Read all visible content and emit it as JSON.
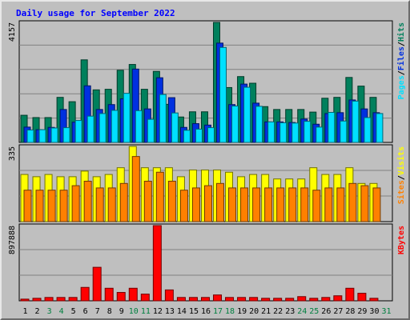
{
  "chart_data": {
    "type": "bar",
    "title": "Daily usage for September 2022",
    "categories": [
      "1",
      "2",
      "3",
      "4",
      "5",
      "6",
      "7",
      "8",
      "9",
      "10",
      "11",
      "12",
      "13",
      "14",
      "15",
      "16",
      "17",
      "18",
      "19",
      "20",
      "21",
      "22",
      "23",
      "24",
      "25",
      "26",
      "27",
      "28",
      "29",
      "30",
      "31"
    ],
    "weekend_days": [
      "3",
      "4",
      "10",
      "11",
      "17",
      "18",
      "24",
      "25",
      "31"
    ],
    "panels": [
      {
        "max_label": "4157",
        "ymax": 4157,
        "legend": [
          "Pages",
          "Files",
          "Hits"
        ],
        "series": [
          {
            "name": "Hits",
            "color": "#00805c",
            "values": [
              940,
              860,
              860,
              1560,
              1410,
              2860,
              1820,
              1840,
              2500,
              2700,
              1840,
              2460,
              1320,
              880,
              1060,
              1060,
              4157,
              1900,
              2280,
              2050,
              1240,
              1140,
              1140,
              1140,
              1050,
              1530,
              1560,
              2250,
              1950,
              1560,
              0
            ]
          },
          {
            "name": "Files",
            "color": "#0030e0",
            "values": [
              530,
              440,
              520,
              1140,
              700,
              1960,
              1140,
              1310,
              1510,
              2540,
              1160,
              2240,
              1550,
              520,
              650,
              600,
              3440,
              1310,
              2020,
              1360,
              710,
              710,
              690,
              810,
              630,
              1000,
              1030,
              1470,
              1160,
              1030,
              0
            ]
          },
          {
            "name": "Pages",
            "color": "#00e0ff",
            "values": [
              430,
              440,
              500,
              510,
              760,
              910,
              1000,
              1110,
              1700,
              1100,
              800,
              1660,
              1020,
              420,
              460,
              510,
              3290,
              1260,
              1910,
              1250,
              710,
              680,
              670,
              730,
              530,
              1040,
              740,
              1430,
              860,
              1000,
              0
            ]
          }
        ]
      },
      {
        "max_label": "335",
        "ymax": 335,
        "legend": [
          "Sites",
          "Visits"
        ],
        "series": [
          {
            "name": "Visits",
            "color": "#ffff00",
            "values": [
              210,
              200,
              210,
              200,
              200,
              225,
              200,
              210,
              240,
              335,
              240,
              240,
              240,
              200,
              230,
              230,
              230,
              220,
              200,
              210,
              210,
              190,
              190,
              190,
              240,
              210,
              210,
              240,
              170,
              170,
              0
            ]
          },
          {
            "name": "Sites",
            "color": "#ff8000",
            "values": [
              140,
              140,
              140,
              140,
              160,
              180,
              150,
              150,
              170,
              290,
              180,
              220,
              180,
              140,
              150,
              160,
              170,
              150,
              150,
              150,
              150,
              150,
              150,
              150,
              140,
              150,
              150,
              170,
              160,
              150,
              0
            ]
          }
        ]
      },
      {
        "max_label": "897888",
        "ymax": 897888,
        "legend": [
          "KBytes"
        ],
        "series": [
          {
            "name": "KBytes",
            "color": "#ff0000",
            "values": [
              20000,
              30000,
              40000,
              40000,
              40000,
              160000,
              400000,
              150000,
              100000,
              150000,
              80000,
              897888,
              130000,
              40000,
              40000,
              40000,
              70000,
              40000,
              40000,
              40000,
              30000,
              30000,
              30000,
              50000,
              30000,
              40000,
              60000,
              150000,
              90000,
              30000,
              0
            ]
          }
        ]
      }
    ]
  },
  "colors": {
    "background": "#bfbfbf",
    "title": "#0000ff",
    "slash": "#000000",
    "weekend_label": "#008040",
    "weekday_label": "#000000",
    "grid": "#808080"
  }
}
